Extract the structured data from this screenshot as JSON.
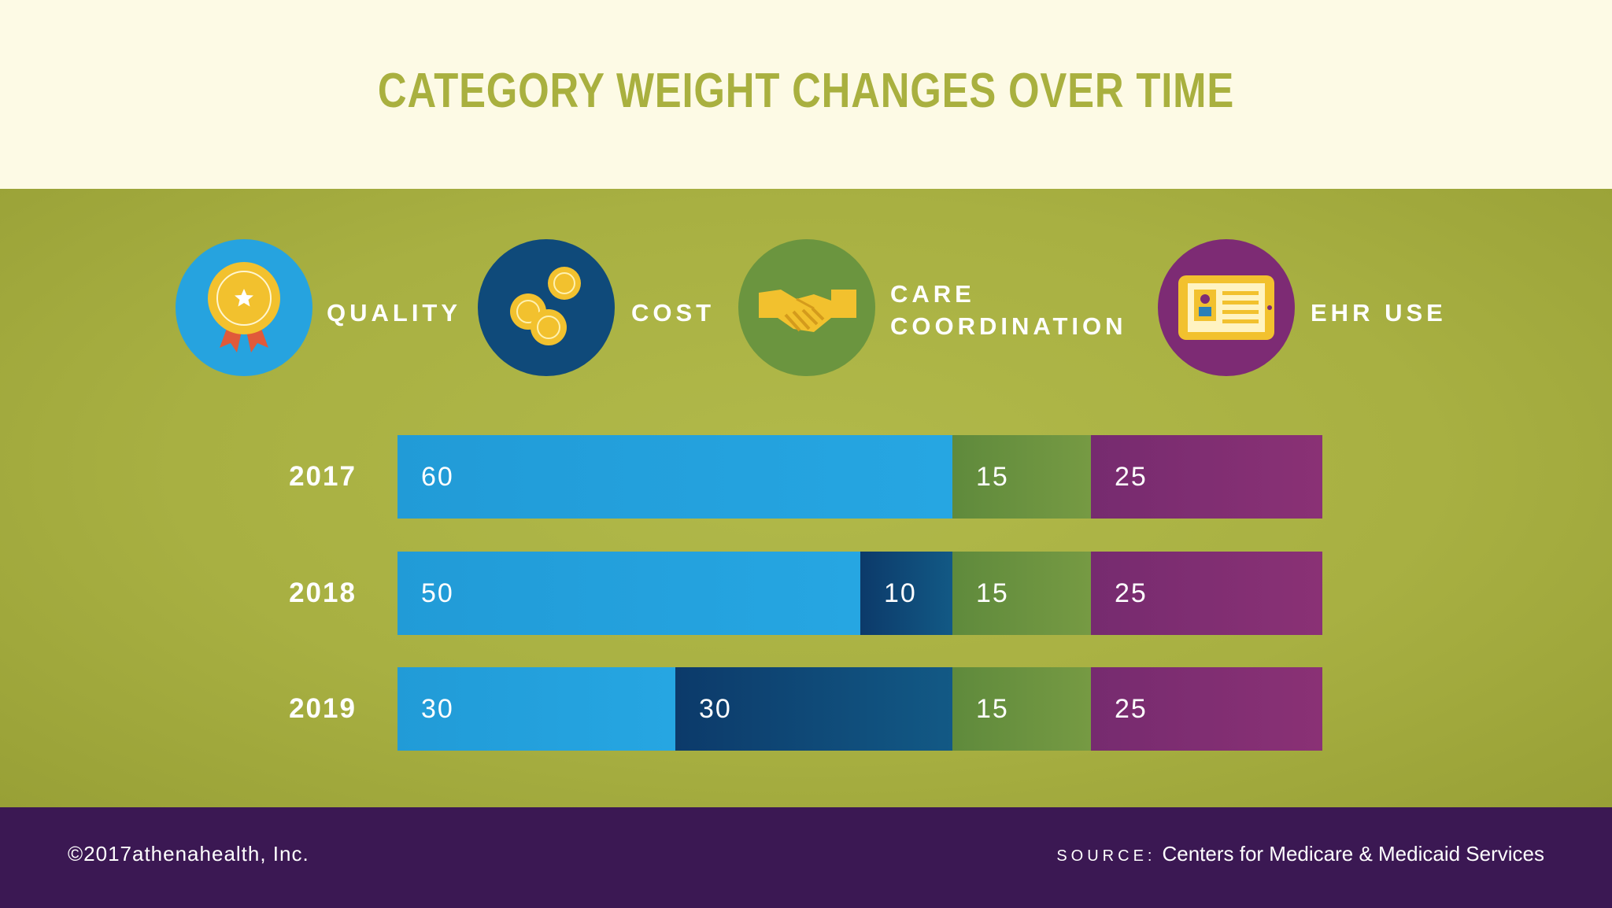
{
  "header": {
    "title": "CATEGORY WEIGHT CHANGES OVER TIME"
  },
  "legend": [
    {
      "key": "quality",
      "label": "QUALITY",
      "icon": "medal-icon",
      "color": "#26a3df"
    },
    {
      "key": "cost",
      "label": "COST",
      "icon": "coins-icon",
      "color": "#0f4a7a"
    },
    {
      "key": "care",
      "label_lines": [
        "CARE",
        "COORDINATION"
      ],
      "icon": "handshake-icon",
      "color": "#6b953f"
    },
    {
      "key": "ehr",
      "label": "EHR USE",
      "icon": "ehr-card-icon",
      "color": "#7d2b74"
    }
  ],
  "chart_data": {
    "type": "bar",
    "orientation": "horizontal",
    "stacked": true,
    "title": "CATEGORY WEIGHT CHANGES OVER TIME",
    "categories": [
      "2017",
      "2018",
      "2019"
    ],
    "series": [
      {
        "name": "QUALITY",
        "values": [
          60,
          50,
          30
        ],
        "color": "#26a3df"
      },
      {
        "name": "COST",
        "values": [
          0,
          10,
          30
        ],
        "color": "#0f4a7a"
      },
      {
        "name": "CARE COORDINATION",
        "values": [
          15,
          15,
          15
        ],
        "color": "#6b953f"
      },
      {
        "name": "EHR USE",
        "values": [
          25,
          25,
          25
        ],
        "color": "#7d2b74"
      }
    ],
    "xlim": [
      0,
      100
    ],
    "xlabel": "",
    "ylabel": "",
    "legend": "top"
  },
  "footer": {
    "copyright": "©2017athenahealth, Inc.",
    "source_label": "SOURCE:",
    "source_text": "Centers for Medicare & Medicaid Services"
  }
}
